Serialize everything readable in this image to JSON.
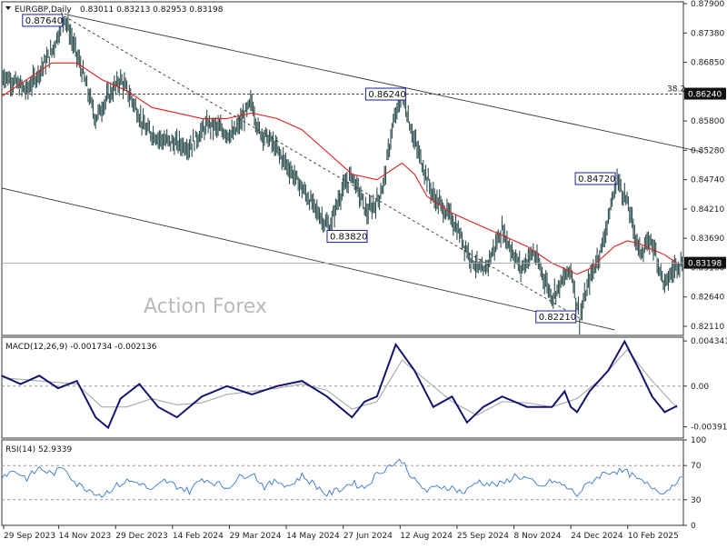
{
  "chart_data": [
    {
      "type": "line",
      "pane": "price",
      "title": "EURGBP,Daily",
      "ohlc_readout": "0.83011 0.83213 0.82953 0.83198",
      "watermark": "Action Forex",
      "current_price_label": "0.83198",
      "fib_label": "38.2",
      "fib_price_label": "0.86240",
      "ylim": [
        0.819,
        0.879
      ],
      "y_ticks": [
        "0.87900",
        "0.87380",
        "0.86850",
        "0.86330",
        "0.85800",
        "0.85280",
        "0.84740",
        "0.84210",
        "0.83690",
        "0.83160",
        "0.82640",
        "0.82110"
      ],
      "x_ticks": [
        "29 Sep 2023",
        "14 Nov 2023",
        "29 Dec 2023",
        "14 Feb 2024",
        "29 Mar 2024",
        "14 May 2024",
        "27 Jun 2024",
        "12 Aug 2024",
        "25 Sep 2024",
        "8 Nov 2024",
        "24 Dec 2024",
        "10 Feb 2025"
      ],
      "annotations": [
        {
          "label": "0.87640",
          "bar": 50,
          "price": 0.8764
        },
        {
          "label": "0.86240",
          "bar": 320,
          "price": 0.8624
        },
        {
          "label": "0.83820",
          "bar": 295,
          "price": 0.8382
        },
        {
          "label": "0.84720",
          "bar": 492,
          "price": 0.8472
        },
        {
          "label": "0.82210",
          "bar": 462,
          "price": 0.8221
        }
      ],
      "series": [
        {
          "key": "close",
          "x": [
            0,
            20,
            40,
            50,
            65,
            75,
            85,
            95,
            105,
            115,
            130,
            150,
            165,
            185,
            200,
            205,
            215,
            230,
            250,
            262,
            270,
            280,
            292,
            300,
            305,
            312,
            320,
            330,
            345,
            360,
            375,
            385,
            400,
            415,
            425,
            440,
            455,
            462,
            470,
            480,
            492,
            500,
            510,
            520,
            530,
            540
          ],
          "y": [
            0.866,
            0.863,
            0.87,
            0.8764,
            0.866,
            0.858,
            0.862,
            0.865,
            0.861,
            0.856,
            0.854,
            0.853,
            0.857,
            0.855,
            0.861,
            0.856,
            0.854,
            0.849,
            0.842,
            0.8382,
            0.844,
            0.848,
            0.841,
            0.843,
            0.846,
            0.856,
            0.8624,
            0.854,
            0.844,
            0.84,
            0.833,
            0.83,
            0.838,
            0.831,
            0.834,
            0.826,
            0.831,
            0.8221,
            0.829,
            0.835,
            0.8472,
            0.843,
            0.834,
            0.836,
            0.828,
            0.832
          ]
        },
        {
          "key": "ma",
          "x": [
            0,
            20,
            40,
            60,
            80,
            100,
            120,
            140,
            160,
            180,
            200,
            220,
            240,
            260,
            280,
            300,
            320,
            330,
            340,
            360,
            380,
            400,
            420,
            440,
            460,
            470,
            480,
            490,
            500,
            510,
            520,
            530,
            540
          ],
          "y": [
            0.862,
            0.865,
            0.868,
            0.868,
            0.865,
            0.863,
            0.86,
            0.859,
            0.858,
            0.858,
            0.859,
            0.858,
            0.856,
            0.852,
            0.848,
            0.847,
            0.85,
            0.848,
            0.844,
            0.841,
            0.839,
            0.837,
            0.835,
            0.832,
            0.83,
            0.831,
            0.833,
            0.835,
            0.836,
            0.8355,
            0.8345,
            0.8335,
            0.832
          ]
        }
      ],
      "trendlines": [
        {
          "style": "solid",
          "p1": [
            50,
            0.8768
          ],
          "p2": [
            560,
            0.852
          ]
        },
        {
          "style": "solid",
          "p1": [
            0,
            0.8455
          ],
          "p2": [
            490,
            0.82
          ]
        },
        {
          "style": "dashed",
          "p1": [
            50,
            0.8764
          ],
          "p2": [
            462,
            0.8221
          ]
        }
      ],
      "hlines": [
        {
          "style": "dashed",
          "price": 0.8624
        },
        {
          "style": "solid-gray",
          "price": 0.83198
        }
      ]
    },
    {
      "type": "line",
      "pane": "macd",
      "title": "MACD(12,26,9) -0.001734 -0.002136",
      "ylim": [
        -0.005,
        0.0047
      ],
      "y_ticks": [
        "0.004341",
        "0.00",
        "-0.003916"
      ],
      "series": [
        {
          "key": "macd",
          "x": [
            0,
            15,
            30,
            45,
            60,
            75,
            85,
            95,
            110,
            125,
            140,
            160,
            180,
            200,
            220,
            240,
            260,
            280,
            290,
            300,
            315,
            330,
            345,
            360,
            372,
            385,
            400,
            420,
            440,
            450,
            455,
            460,
            470,
            485,
            498,
            510,
            520,
            530,
            540
          ],
          "y": [
            0.001,
            0.0002,
            0.001,
            -0.0002,
            0.0005,
            -0.003,
            -0.004,
            -0.0012,
            0.0002,
            -0.002,
            -0.003,
            -0.001,
            0.0,
            -0.0008,
            0.0,
            0.0005,
            -0.001,
            -0.003,
            -0.0015,
            -0.001,
            0.004,
            0.0015,
            -0.002,
            -0.001,
            -0.0035,
            -0.002,
            -0.001,
            -0.002,
            -0.002,
            -0.0005,
            -0.002,
            -0.0025,
            -0.0005,
            0.0015,
            0.0043,
            0.0015,
            -0.001,
            -0.0025,
            -0.0019
          ]
        },
        {
          "key": "signal",
          "x": [
            0,
            20,
            40,
            60,
            80,
            100,
            120,
            140,
            160,
            180,
            200,
            220,
            240,
            260,
            280,
            300,
            320,
            340,
            360,
            380,
            400,
            420,
            440,
            460,
            480,
            500,
            520,
            540
          ],
          "y": [
            0.0008,
            0.0006,
            0.0004,
            0.0002,
            -0.002,
            -0.002,
            -0.0012,
            -0.0018,
            -0.0016,
            -0.0008,
            -0.0005,
            -0.0002,
            0.0002,
            -0.0004,
            -0.0022,
            -0.0015,
            0.0025,
            0.0005,
            -0.0015,
            -0.0028,
            -0.0015,
            -0.0016,
            -0.002,
            -0.0012,
            0.0008,
            0.0035,
            0.0005,
            -0.0021
          ]
        }
      ]
    },
    {
      "type": "line",
      "pane": "rsi",
      "title": "RSI(14) 52.9339",
      "ylim": [
        0,
        100
      ],
      "y_ticks": [
        "100",
        "70",
        "30",
        "0"
      ],
      "series": [
        {
          "key": "rsi",
          "x": [
            0,
            10,
            20,
            30,
            40,
            50,
            60,
            70,
            80,
            90,
            100,
            110,
            120,
            130,
            140,
            150,
            160,
            170,
            180,
            190,
            200,
            210,
            220,
            230,
            240,
            250,
            260,
            270,
            280,
            290,
            300,
            310,
            320,
            330,
            340,
            350,
            360,
            370,
            380,
            390,
            400,
            410,
            420,
            430,
            440,
            450,
            460,
            470,
            480,
            490,
            500,
            510,
            520,
            530,
            540
          ],
          "y": [
            58,
            64,
            55,
            67,
            60,
            68,
            48,
            42,
            35,
            45,
            52,
            50,
            40,
            52,
            46,
            40,
            55,
            50,
            44,
            56,
            62,
            45,
            52,
            46,
            58,
            48,
            36,
            42,
            50,
            44,
            60,
            70,
            76,
            52,
            40,
            46,
            44,
            38,
            52,
            48,
            48,
            58,
            55,
            44,
            52,
            46,
            36,
            50,
            60,
            64,
            62,
            52,
            45,
            38,
            53
          ]
        }
      ]
    }
  ]
}
